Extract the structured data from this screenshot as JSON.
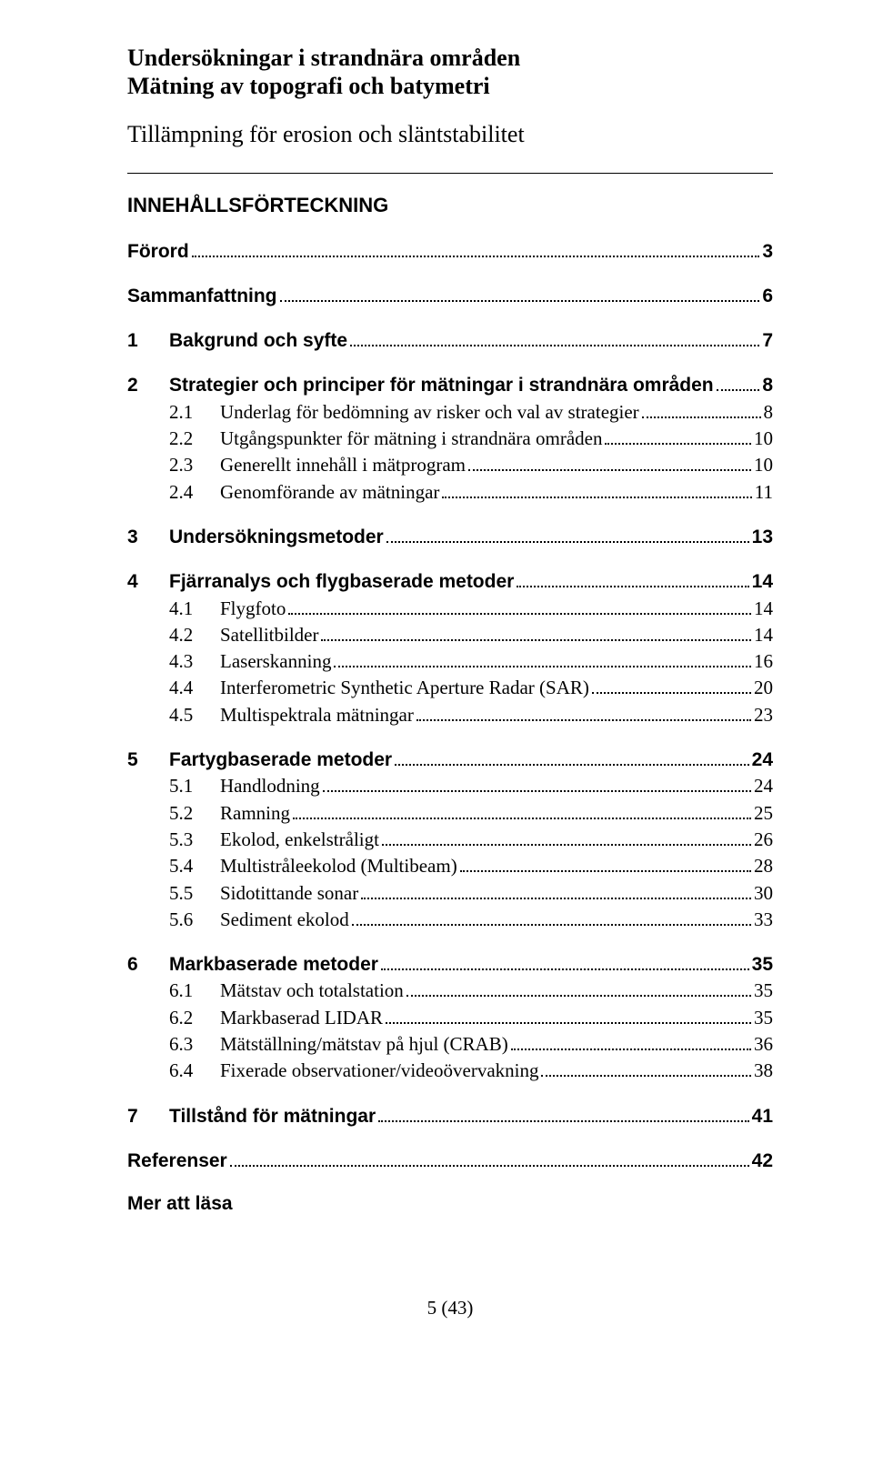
{
  "header": {
    "title_line1": "Undersökningar i strandnära områden",
    "title_line2": "Mätning av topografi och batymetri",
    "subtitle": "Tillämpning för erosion och släntstabilitet",
    "toc_heading": "INNEHÅLLSFÖRTECKNING"
  },
  "toc": [
    {
      "type": "top",
      "num": "",
      "label": "Förord",
      "page": "3",
      "nonum": true,
      "first": true
    },
    {
      "type": "top",
      "num": "",
      "label": "Sammanfattning",
      "page": "6",
      "nonum": true
    },
    {
      "type": "top",
      "num": "1",
      "label": "Bakgrund och syfte",
      "page": "7"
    },
    {
      "type": "top",
      "num": "2",
      "label": "Strategier och principer för mätningar i strandnära områden",
      "page": "8"
    },
    {
      "type": "sub",
      "num": "2.1",
      "label": "Underlag för bedömning av risker och val av strategier",
      "page": "8"
    },
    {
      "type": "sub",
      "num": "2.2",
      "label": "Utgångspunkter för mätning i strandnära områden",
      "page": "10"
    },
    {
      "type": "sub",
      "num": "2.3",
      "label": "Generellt innehåll i mätprogram",
      "page": "10"
    },
    {
      "type": "sub",
      "num": "2.4",
      "label": "Genomförande av mätningar",
      "page": "11"
    },
    {
      "type": "top",
      "num": "3",
      "label": "Undersökningsmetoder",
      "page": "13"
    },
    {
      "type": "top",
      "num": "4",
      "label": "Fjärranalys och flygbaserade metoder",
      "page": "14"
    },
    {
      "type": "sub",
      "num": "4.1",
      "label": "Flygfoto",
      "page": "14"
    },
    {
      "type": "sub",
      "num": "4.2",
      "label": "Satellitbilder",
      "page": "14"
    },
    {
      "type": "sub",
      "num": "4.3",
      "label": "Laserskanning",
      "page": "16"
    },
    {
      "type": "sub",
      "num": "4.4",
      "label": "Interferometric Synthetic Aperture Radar (SAR)",
      "page": "20"
    },
    {
      "type": "sub",
      "num": "4.5",
      "label": "Multispektrala mätningar",
      "page": "23"
    },
    {
      "type": "top",
      "num": "5",
      "label": "Fartygbaserade metoder",
      "page": "24"
    },
    {
      "type": "sub",
      "num": "5.1",
      "label": "Handlodning",
      "page": "24"
    },
    {
      "type": "sub",
      "num": "5.2",
      "label": "Ramning",
      "page": "25"
    },
    {
      "type": "sub",
      "num": "5.3",
      "label": "Ekolod, enkelstråligt",
      "page": "26"
    },
    {
      "type": "sub",
      "num": "5.4",
      "label": "Multistråleekolod (Multibeam)",
      "page": "28"
    },
    {
      "type": "sub",
      "num": "5.5",
      "label": "Sidotittande sonar",
      "page": "30"
    },
    {
      "type": "sub",
      "num": "5.6",
      "label": "Sediment ekolod",
      "page": "33"
    },
    {
      "type": "top",
      "num": "6",
      "label": "Markbaserade metoder",
      "page": "35"
    },
    {
      "type": "sub",
      "num": "6.1",
      "label": "Mätstav och totalstation",
      "page": "35"
    },
    {
      "type": "sub",
      "num": "6.2",
      "label": "Markbaserad LIDAR",
      "page": "35"
    },
    {
      "type": "sub",
      "num": "6.3",
      "label": "Mätställning/mätstav på hjul (CRAB)",
      "page": "36"
    },
    {
      "type": "sub",
      "num": "6.4",
      "label": "Fixerade observationer/videoövervakning",
      "page": "38"
    },
    {
      "type": "top",
      "num": "7",
      "label": "Tillstånd för mätningar",
      "page": "41"
    },
    {
      "type": "top",
      "num": "",
      "label": "Referenser",
      "page": "42",
      "nonum": true
    }
  ],
  "mer": "Mer att läsa",
  "footer": "5 (43)"
}
